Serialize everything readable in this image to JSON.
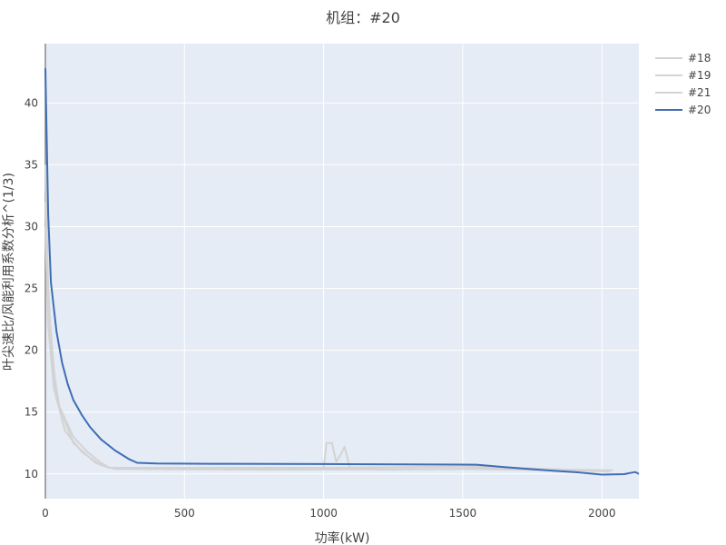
{
  "chart_data": {
    "type": "line",
    "title": "机组：#20",
    "xlabel": "功率(kW)",
    "ylabel": "叶尖速比/风能利用系数分析^(1/3)",
    "xlim": [
      0,
      2133
    ],
    "ylim": [
      8.0,
      44.8
    ],
    "xticks": [
      0,
      500,
      1000,
      1500,
      2000
    ],
    "yticks": [
      10,
      15,
      20,
      25,
      30,
      35,
      40
    ],
    "grid": true,
    "legend_position": "right",
    "background": "#e5ecf6",
    "series": [
      {
        "name": "#18",
        "color": "#d3d3d3",
        "x": [
          0,
          10,
          25,
          50,
          100,
          150,
          200,
          230,
          500,
          900,
          980,
          1000,
          1010,
          1030,
          1045,
          1060,
          1075,
          1095,
          1200,
          1500,
          1550,
          1700,
          2000,
          2040
        ],
        "y": [
          35,
          25,
          19,
          15.5,
          13,
          11.8,
          10.9,
          10.5,
          10.45,
          10.4,
          10.5,
          10.4,
          12.5,
          12.5,
          11.0,
          11.5,
          12.2,
          10.5,
          10.35,
          10.4,
          10.5,
          10.4,
          10.3,
          10.3
        ]
      },
      {
        "name": "#19",
        "color": "#d3d3d3",
        "x": [
          0,
          10,
          30,
          70,
          130,
          200,
          250,
          800,
          1500,
          2000
        ],
        "y": [
          30,
          22,
          17,
          13.5,
          11.8,
          10.7,
          10.4,
          10.35,
          10.4,
          10.25
        ]
      },
      {
        "name": "#21",
        "color": "#d3d3d3",
        "x": [
          0,
          10,
          40,
          100,
          180,
          230,
          1000,
          1550,
          1800,
          2030
        ],
        "y": [
          32,
          24,
          16,
          12.5,
          10.9,
          10.5,
          10.5,
          10.6,
          10.4,
          10.2
        ]
      },
      {
        "name": "#20",
        "color": "#3f6db4",
        "x": [
          0,
          5,
          10,
          20,
          40,
          60,
          80,
          100,
          130,
          160,
          200,
          250,
          300,
          330,
          400,
          600,
          1000,
          1550,
          1650,
          1800,
          1900,
          2000,
          2080,
          2120,
          2133
        ],
        "y": [
          42.8,
          37,
          31,
          25.5,
          21.5,
          19,
          17.3,
          16,
          14.8,
          13.8,
          12.8,
          11.9,
          11.2,
          10.9,
          10.85,
          10.82,
          10.8,
          10.75,
          10.55,
          10.3,
          10.15,
          9.95,
          9.98,
          10.15,
          10.0
        ]
      }
    ]
  }
}
